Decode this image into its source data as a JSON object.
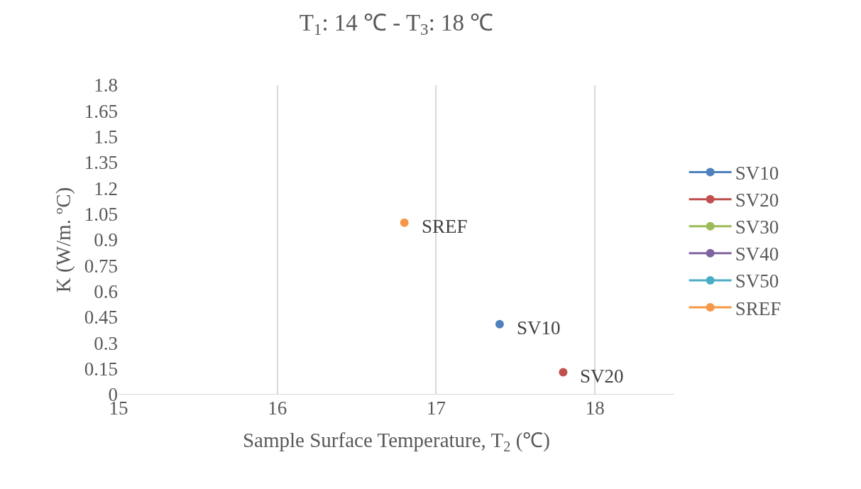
{
  "chart_data": {
    "type": "line",
    "title": "T$_{1}$: 14 ℃ - T$_{3}$: 18 ℃",
    "xlabel": "Sample Surface Temperature, T$_{2}$ (℃)",
    "ylabel": "K (W/m. ºC)",
    "series": [
      {
        "name": "SV10",
        "color": "#4f81bd",
        "x": [
          17.4
        ],
        "values": [
          0.41
        ]
      },
      {
        "name": "SV20",
        "color": "#c0504d",
        "x": [
          17.8
        ],
        "values": [
          0.13
        ]
      },
      {
        "name": "SV30",
        "color": "#9bbb59",
        "x": [
          null
        ],
        "values": [
          null
        ]
      },
      {
        "name": "SV40",
        "color": "#8064a2",
        "x": [
          null
        ],
        "values": [
          null
        ]
      },
      {
        "name": "SV50",
        "color": "#4bacc6",
        "x": [
          null
        ],
        "values": [
          null
        ]
      },
      {
        "name": "SREF",
        "color": "#f79646",
        "x": [
          16.8
        ],
        "values": [
          1.0
        ]
      }
    ],
    "xlim": [
      15,
      18.5
    ],
    "xticks": [
      15,
      16,
      17,
      18
    ],
    "ylim": [
      0,
      1.8
    ],
    "yticks": [
      0,
      0.15,
      0.3,
      0.45,
      0.6,
      0.75,
      0.9,
      1.05,
      1.2,
      1.35,
      1.5,
      1.65,
      1.8
    ],
    "grid": "x",
    "legend": "right",
    "marker": "circle",
    "line_style": "solid"
  }
}
